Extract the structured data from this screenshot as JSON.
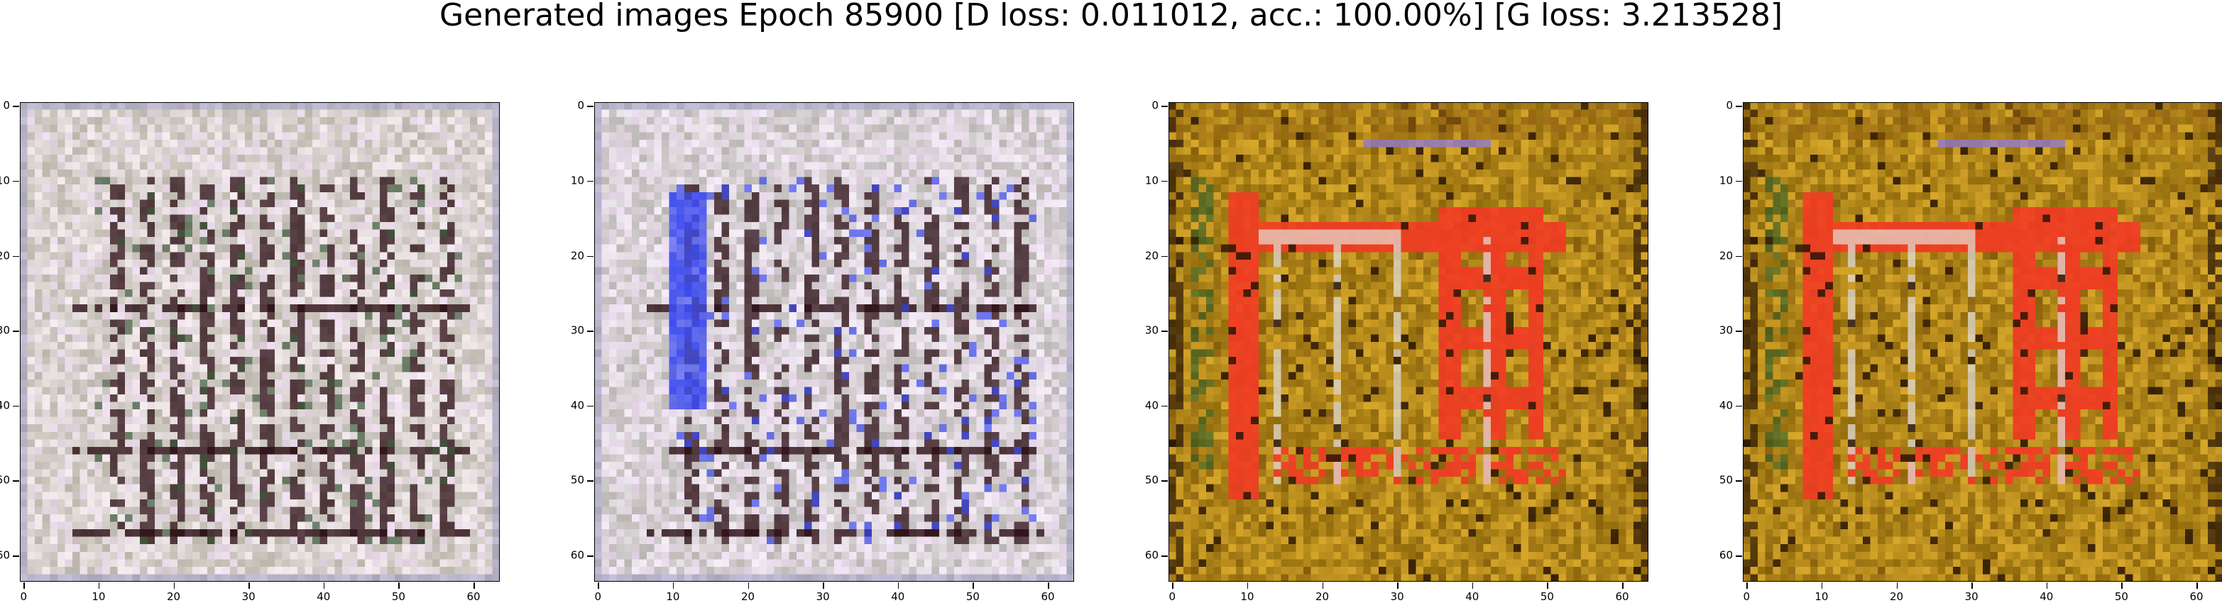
{
  "figure": {
    "title": "Generated images Epoch 85900 [D loss: 0.011012, acc.: 100.00%] [G loss: 3.213528]"
  },
  "axes": {
    "image_size": 64,
    "x_ticks": [
      0,
      10,
      20,
      30,
      40,
      50,
      60
    ],
    "y_ticks": [
      0,
      10,
      20,
      30,
      40,
      50,
      60
    ],
    "xlim": [
      -0.5,
      63.5
    ],
    "ylim": [
      63.5,
      -0.5
    ]
  },
  "images": [
    {
      "name": "generated-sample-1",
      "palette": "pale",
      "base_color": "#d9d2cf",
      "dark_color": "#2a0d12",
      "accent_color": "#3c5a3a"
    },
    {
      "name": "generated-sample-2",
      "palette": "pale-blue",
      "base_color": "#d8d2d6",
      "dark_color": "#2a0d12",
      "accent_color": "#3d4cf2"
    },
    {
      "name": "generated-sample-3",
      "palette": "ochre-red",
      "base_color": "#b58a1c",
      "dark_color": "#2a1605",
      "accent_color": "#f23a24"
    },
    {
      "name": "generated-sample-4",
      "palette": "ochre-red",
      "base_color": "#b58a1c",
      "dark_color": "#2a1605",
      "accent_color": "#f23a24"
    }
  ]
}
